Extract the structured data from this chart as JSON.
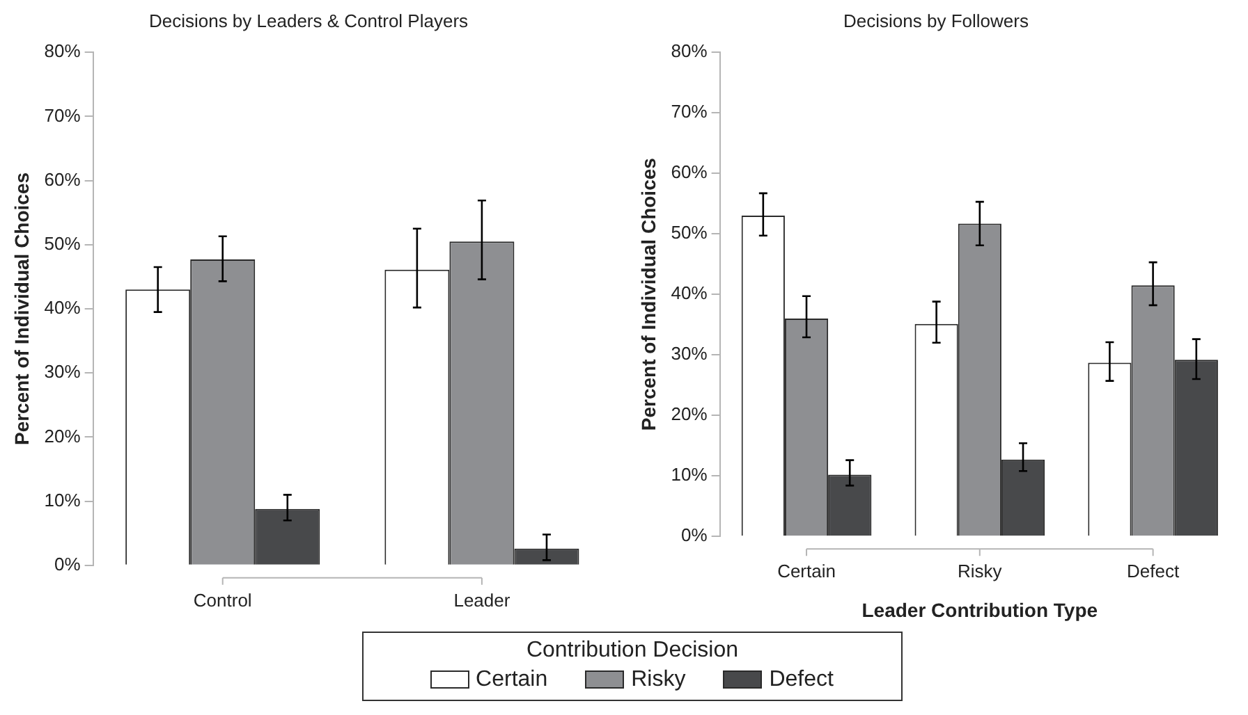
{
  "chart_data": [
    {
      "type": "bar",
      "title": "Decisions by Leaders & Control Players",
      "ylabel": "Percent of Individual Choices",
      "categories": [
        "Control",
        "Leader"
      ],
      "legend": "bottom",
      "legend_title": "Contribution Decision",
      "ylim": [
        0,
        80
      ],
      "yticks": [
        {
          "value": 0,
          "label": "0%"
        },
        {
          "value": 10,
          "label": "10%"
        },
        {
          "value": 20,
          "label": "20%"
        },
        {
          "value": 30,
          "label": "30%"
        },
        {
          "value": 40,
          "label": "40%"
        },
        {
          "value": 50,
          "label": "50%"
        },
        {
          "value": 60,
          "label": "60%"
        },
        {
          "value": 70,
          "label": "70%"
        },
        {
          "value": 80,
          "label": "80%"
        }
      ],
      "series": [
        {
          "name": "Certain",
          "color": "#ffffff",
          "values": [
            43,
            46.1
          ],
          "errors": [
            [
              39.5,
              46.5
            ],
            [
              40.2,
              52.5
            ]
          ]
        },
        {
          "name": "Risky",
          "color": "#8e8f92",
          "values": [
            47.7,
            50.5
          ],
          "errors": [
            [
              44.3,
              51.3
            ],
            [
              44.6,
              56.9
            ]
          ]
        },
        {
          "name": "Defect",
          "color": "#48494b",
          "values": [
            8.8,
            2.6
          ],
          "errors": [
            [
              7,
              11
            ],
            [
              0.8,
              4.8
            ]
          ]
        }
      ]
    },
    {
      "type": "bar",
      "title": "Decisions by Followers",
      "ylabel": "Percent of Individual Choices",
      "xlabel": "Leader Contribution Type",
      "categories": [
        "Certain",
        "Risky",
        "Defect"
      ],
      "ylim": [
        0,
        80
      ],
      "yticks": [
        {
          "value": 0,
          "label": "0%"
        },
        {
          "value": 10,
          "label": "10%"
        },
        {
          "value": 20,
          "label": "20%"
        },
        {
          "value": 30,
          "label": "30%"
        },
        {
          "value": 40,
          "label": "40%"
        },
        {
          "value": 50,
          "label": "50%"
        },
        {
          "value": 60,
          "label": "60%"
        },
        {
          "value": 70,
          "label": "70%"
        },
        {
          "value": 80,
          "label": "80%"
        }
      ],
      "series": [
        {
          "color": "#ffffff",
          "values": [
            53,
            35.1,
            28.7
          ],
          "errors": [
            [
              49.7,
              56.7
            ],
            [
              32,
              38.8
            ],
            [
              25.7,
              32.1
            ]
          ]
        },
        {
          "color": "#8e8f92",
          "values": [
            36,
            51.7,
            41.5
          ],
          "errors": [
            [
              32.9,
              39.7
            ],
            [
              48.1,
              55.3
            ],
            [
              38.2,
              45.3
            ]
          ]
        },
        {
          "color": "#48494b",
          "values": [
            10.2,
            12.7,
            29.2
          ],
          "errors": [
            [
              8.4,
              12.6
            ],
            [
              10.8,
              15.4
            ],
            [
              26,
              32.6
            ]
          ]
        }
      ]
    }
  ]
}
